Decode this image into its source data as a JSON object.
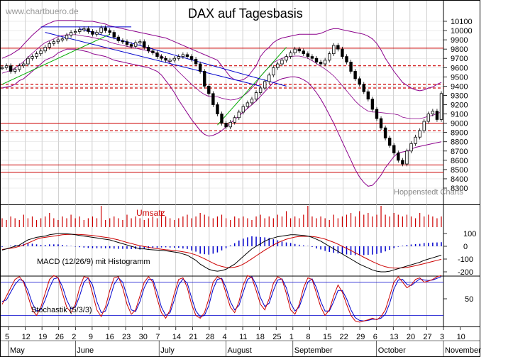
{
  "watermark": "www.chartbuero.de",
  "title": "DAX auf Tagesbasis",
  "source_label": "Hoppenstedt Charts",
  "volume_label": "Umsatz",
  "macd_label": "MACD (12/26/9) mit Histogramm",
  "stoch_label": "Stochastik (5/3/3)",
  "colors": {
    "candle": "#000000",
    "bollinger": "#8b008b",
    "support_line": "#cc0000",
    "trend_up": "#00aa00",
    "trend_down": "#0000cc",
    "volume": "#cc0000",
    "macd_line": "#000000",
    "signal_line": "#cc0000",
    "histogram": "#0000cc",
    "stoch_k": "#cc0000",
    "stoch_d": "#0000cc",
    "grid": "#b0b0b0"
  },
  "chart_data": [
    {
      "type": "candlestick",
      "title": "DAX auf Tagesbasis",
      "y_ticks": [
        8300,
        8400,
        8500,
        8600,
        8700,
        8800,
        8900,
        9000,
        9100,
        9200,
        9300,
        9400,
        9500,
        9600,
        9700,
        9800,
        9900,
        10000,
        10100
      ],
      "ylim": [
        8230,
        10180
      ],
      "x_day_labels": [
        "5",
        "12",
        "19",
        "26",
        "2",
        "9",
        "16",
        "23",
        "30",
        "7",
        "14",
        "21",
        "28",
        "4",
        "11",
        "18",
        "25",
        "1",
        "8",
        "15",
        "22",
        "29",
        "6",
        "13",
        "20",
        "27",
        "3",
        "10"
      ],
      "x_month_labels": [
        "May",
        "June",
        "July",
        "August",
        "September",
        "October",
        "November"
      ],
      "closes": [
        9600,
        9620,
        9560,
        9580,
        9620,
        9640,
        9700,
        9720,
        9750,
        9780,
        9820,
        9860,
        9880,
        9900,
        9910,
        9950,
        9980,
        9990,
        10010,
        10020,
        9990,
        9960,
        9980,
        10030,
        10000,
        9980,
        9930,
        9890,
        9880,
        9850,
        9830,
        9870,
        9880,
        9820,
        9780,
        9760,
        9720,
        9700,
        9680,
        9680,
        9700,
        9720,
        9740,
        9720,
        9690,
        9640,
        9560,
        9400,
        9320,
        9200,
        9100,
        9000,
        8960,
        9010,
        9060,
        9120,
        9180,
        9220,
        9260,
        9330,
        9380,
        9450,
        9520,
        9600,
        9640,
        9680,
        9720,
        9760,
        9800,
        9780,
        9750,
        9720,
        9700,
        9660,
        9640,
        9680,
        9750,
        9840,
        9800,
        9720,
        9660,
        9560,
        9480,
        9420,
        9340,
        9260,
        9150,
        9050,
        8950,
        8840,
        8760,
        8680,
        8600,
        8560,
        8700,
        8780,
        8850,
        8920,
        9020,
        9100,
        9130,
        9040,
        9320
      ],
      "bollinger_upper": [
        9700,
        9720,
        9740,
        9770,
        9800,
        9850,
        9900,
        9950,
        9990,
        10030,
        10060,
        10080,
        10100,
        10110,
        10110,
        10110,
        10110,
        10110,
        10110,
        10100,
        10100,
        10100,
        10090,
        10080,
        10070,
        10050,
        10040,
        10030,
        10020,
        10010,
        10000,
        9990,
        9980,
        9970,
        9960,
        9950,
        9940,
        9930,
        9920,
        9900,
        9880,
        9860,
        9840,
        9820,
        9800,
        9780,
        9760,
        9740,
        9720,
        9700,
        9680,
        9620,
        9560,
        9500,
        9470,
        9460,
        9470,
        9500,
        9560,
        9620,
        9720,
        9780,
        9820,
        9870,
        9900,
        9920,
        9930,
        9940,
        9950,
        9960,
        9960,
        9960,
        9960,
        9960,
        9970,
        9990,
        10010,
        10020,
        10020,
        10010,
        10000,
        9990,
        9980,
        9970,
        9960,
        9940,
        9910,
        9860,
        9790,
        9700,
        9630,
        9560,
        9500,
        9440,
        9410,
        9380,
        9360,
        9350,
        9360,
        9380,
        9390,
        9420,
        9440
      ],
      "bollinger_lower": [
        9380,
        9390,
        9400,
        9420,
        9460,
        9480,
        9520,
        9560,
        9600,
        9640,
        9680,
        9700,
        9720,
        9760,
        9780,
        9800,
        9800,
        9800,
        9790,
        9780,
        9770,
        9750,
        9740,
        9730,
        9720,
        9700,
        9680,
        9670,
        9660,
        9650,
        9640,
        9630,
        9620,
        9610,
        9600,
        9580,
        9560,
        9520,
        9460,
        9400,
        9330,
        9250,
        9180,
        9110,
        9040,
        8980,
        8920,
        8880,
        8860,
        8870,
        8890,
        8920,
        8960,
        9000,
        9040,
        9080,
        9120,
        9160,
        9200,
        9240,
        9290,
        9340,
        9390,
        9440,
        9460,
        9480,
        9490,
        9500,
        9500,
        9490,
        9470,
        9440,
        9390,
        9330,
        9260,
        9180,
        9090,
        9000,
        8900,
        8800,
        8700,
        8600,
        8500,
        8420,
        8360,
        8320,
        8330,
        8380,
        8440,
        8520,
        8580,
        8640,
        8680,
        8690,
        8700,
        8720,
        8740,
        8750,
        8760,
        8770,
        8780,
        8790,
        8800
      ],
      "horizontal_levels": {
        "solid": [
          9810,
          9000,
          8550,
          8470
        ],
        "dashed": [
          9620,
          9420,
          9380,
          8920
        ]
      },
      "trendlines": [
        {
          "color": "green",
          "from": [
            0,
            9420
          ],
          "to": [
            25,
            9960
          ]
        },
        {
          "color": "green",
          "from": [
            50,
            8980
          ],
          "to": [
            66,
            9820
          ]
        },
        {
          "color": "blue",
          "from": [
            9,
            10040
          ],
          "to": [
            30,
            10040
          ]
        },
        {
          "color": "blue",
          "from": [
            18,
            10020
          ],
          "to": [
            66,
            9400
          ]
        },
        {
          "color": "blue",
          "from": [
            10,
            9980
          ],
          "to": [
            60,
            9400
          ]
        }
      ]
    },
    {
      "type": "bar",
      "title": "Umsatz",
      "values": [
        5,
        4,
        6,
        5,
        4,
        7,
        5,
        6,
        4,
        5,
        6,
        8,
        5,
        4,
        6,
        5,
        7,
        5,
        6,
        4,
        5,
        6,
        5,
        12,
        4,
        5,
        6,
        5,
        4,
        7,
        5,
        6,
        5,
        4,
        5,
        6,
        5,
        9,
        6,
        5,
        4,
        5,
        6,
        7,
        5,
        6,
        8,
        7,
        6,
        5,
        6,
        7,
        5,
        4,
        6,
        5,
        6,
        5,
        4,
        6,
        7,
        5,
        6,
        5,
        7,
        6,
        9,
        5,
        6,
        5,
        7,
        12,
        6,
        5,
        6,
        5,
        4,
        7,
        5,
        6,
        7,
        8,
        6,
        9,
        7,
        8,
        6,
        7,
        12,
        7,
        6,
        8,
        7,
        6,
        7,
        6,
        5,
        8,
        6,
        7,
        6,
        5,
        6
      ]
    },
    {
      "type": "line",
      "title": "MACD (12/26/9) mit Histogramm",
      "y_ticks": [
        100,
        0,
        -100,
        -200
      ],
      "ylim": [
        -250,
        150
      ],
      "series": [
        {
          "name": "MACD",
          "values": [
            -30,
            -20,
            -10,
            0,
            10,
            30,
            50,
            60,
            70,
            75,
            80,
            90,
            95,
            100,
            100,
            98,
            95,
            90,
            85,
            80,
            75,
            70,
            65,
            60,
            55,
            50,
            40,
            30,
            20,
            10,
            0,
            -10,
            -20,
            -20,
            -25,
            -28,
            -30,
            -32,
            -35,
            -40,
            -45,
            -50,
            -60,
            -70,
            -90,
            -110,
            -140,
            -160,
            -180,
            -190,
            -195,
            -190,
            -180,
            -160,
            -140,
            -110,
            -80,
            -50,
            -20,
            0,
            20,
            40,
            55,
            65,
            75,
            80,
            85,
            90,
            90,
            88,
            85,
            80,
            70,
            55,
            40,
            20,
            0,
            -20,
            -40,
            -60,
            -80,
            -100,
            -120,
            -140,
            -155,
            -170,
            -185,
            -195,
            -200,
            -200,
            -195,
            -185,
            -175,
            -165,
            -155,
            -145,
            -135,
            -125,
            -110,
            -100,
            -90,
            -80,
            -70
          ]
        },
        {
          "name": "Signal",
          "values": [
            -25,
            -20,
            -15,
            -10,
            0,
            10,
            25,
            40,
            55,
            65,
            70,
            75,
            80,
            85,
            90,
            92,
            93,
            93,
            92,
            90,
            88,
            85,
            80,
            75,
            70,
            65,
            58,
            50,
            40,
            30,
            22,
            12,
            5,
            -2,
            -8,
            -14,
            -19,
            -23,
            -27,
            -30,
            -34,
            -38,
            -43,
            -49,
            -57,
            -68,
            -82,
            -98,
            -115,
            -132,
            -147,
            -158,
            -165,
            -167,
            -164,
            -155,
            -140,
            -120,
            -98,
            -75,
            -52,
            -30,
            -10,
            10,
            28,
            43,
            55,
            64,
            72,
            76,
            78,
            78,
            76,
            72,
            65,
            56,
            44,
            31,
            16,
            0,
            -16,
            -33,
            -51,
            -68,
            -86,
            -103,
            -120,
            -135,
            -149,
            -160,
            -167,
            -171,
            -171,
            -169,
            -165,
            -159,
            -152,
            -144,
            -136,
            -127,
            -119,
            -110,
            -102
          ]
        },
        {
          "name": "Histogramm",
          "values": [
            -5,
            0,
            5,
            10,
            10,
            20,
            25,
            20,
            15,
            10,
            10,
            15,
            15,
            15,
            10,
            6,
            2,
            -3,
            -7,
            -10,
            -13,
            -15,
            -15,
            -15,
            -15,
            -15,
            -18,
            -20,
            -20,
            -20,
            -22,
            -22,
            -25,
            -18,
            -17,
            -14,
            -11,
            -9,
            -8,
            -10,
            -11,
            -12,
            -17,
            -21,
            -33,
            -42,
            -58,
            -62,
            -65,
            -58,
            -48,
            -32,
            -15,
            7,
            24,
            45,
            60,
            70,
            78,
            75,
            72,
            70,
            65,
            55,
            47,
            37,
            30,
            26,
            18,
            12,
            7,
            2,
            -6,
            -17,
            -25,
            -36,
            -44,
            -51,
            -56,
            -60,
            -64,
            -67,
            -69,
            -72,
            -69,
            -67,
            -65,
            -60,
            -51,
            -40,
            -28,
            -14,
            -4,
            4,
            10,
            14,
            17,
            19,
            26,
            27,
            29,
            30,
            32
          ]
        }
      ]
    },
    {
      "type": "line",
      "title": "Stochastik (5/3/3)",
      "y_ticks": [
        50
      ],
      "ylim": [
        0,
        100
      ],
      "reference_lines": [
        80,
        20
      ],
      "series": [
        {
          "name": "%K",
          "values": [
            40,
            55,
            70,
            85,
            90,
            80,
            55,
            30,
            20,
            35,
            60,
            85,
            92,
            88,
            60,
            35,
            25,
            40,
            70,
            90,
            88,
            60,
            30,
            18,
            35,
            65,
            88,
            90,
            70,
            40,
            22,
            30,
            55,
            80,
            90,
            80,
            50,
            25,
            15,
            30,
            60,
            85,
            88,
            70,
            40,
            20,
            15,
            25,
            50,
            80,
            90,
            85,
            60,
            35,
            25,
            45,
            75,
            92,
            88,
            65,
            40,
            30,
            50,
            78,
            90,
            85,
            60,
            30,
            22,
            40,
            70,
            88,
            85,
            60,
            35,
            20,
            30,
            55,
            75,
            62,
            40,
            20,
            10,
            8,
            10,
            12,
            15,
            12,
            18,
            30,
            55,
            80,
            90,
            80,
            70,
            75,
            85,
            88,
            80,
            82,
            85,
            90,
            92
          ]
        },
        {
          "name": "%D",
          "values": [
            45,
            48,
            62,
            76,
            85,
            82,
            65,
            42,
            28,
            30,
            48,
            70,
            86,
            88,
            72,
            48,
            32,
            35,
            55,
            80,
            88,
            75,
            45,
            25,
            28,
            50,
            76,
            88,
            80,
            55,
            30,
            27,
            45,
            70,
            85,
            85,
            62,
            35,
            20,
            25,
            48,
            75,
            86,
            78,
            52,
            28,
            18,
            20,
            38,
            68,
            85,
            87,
            70,
            45,
            30,
            38,
            62,
            85,
            90,
            75,
            52,
            36,
            42,
            65,
            84,
            86,
            70,
            42,
            28,
            35,
            58,
            80,
            86,
            70,
            45,
            28,
            28,
            45,
            65,
            65,
            50,
            30,
            16,
            11,
            10,
            11,
            13,
            13,
            15,
            22,
            42,
            68,
            84,
            85,
            76,
            74,
            80,
            86,
            84,
            83,
            84,
            87,
            90
          ]
        }
      ]
    }
  ]
}
